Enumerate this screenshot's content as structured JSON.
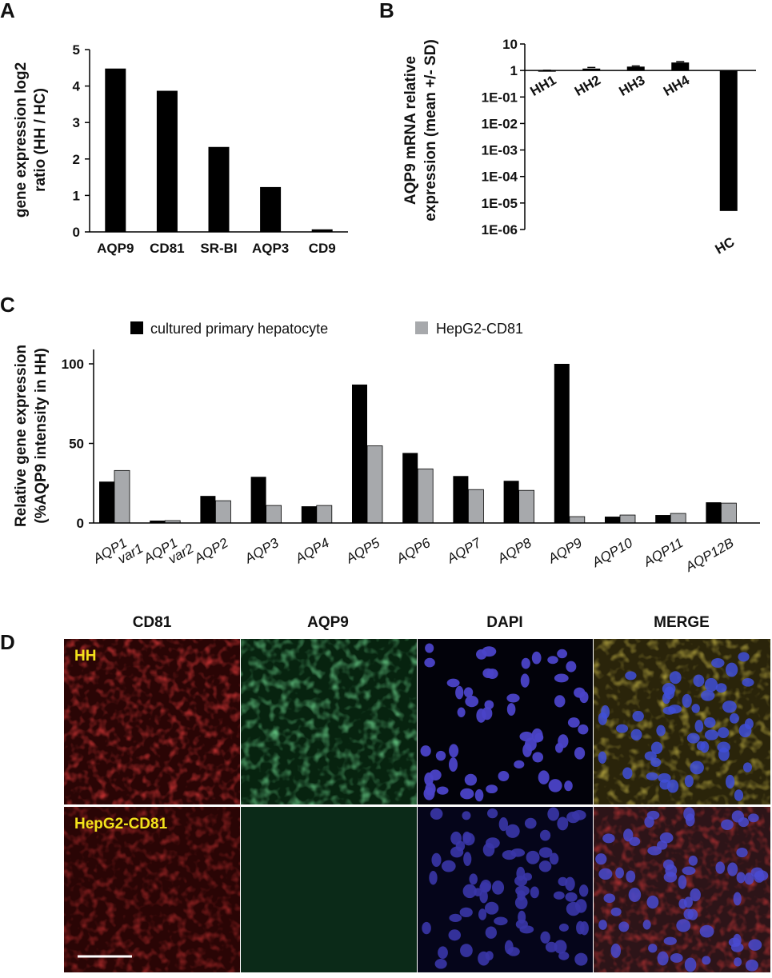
{
  "panel_labels": {
    "a": "A",
    "b": "B",
    "c": "C",
    "d": "D"
  },
  "chart_data": [
    {
      "panel": "A",
      "type": "bar",
      "ylabel_line1": "gene expression log2",
      "ylabel_line2": "ratio (HH / HC)",
      "categories": [
        "AQP9",
        "CD81",
        "SR-BI",
        "AQP3",
        "CD9"
      ],
      "values": [
        4.48,
        3.87,
        2.33,
        1.23,
        0.07
      ],
      "ylim": [
        0,
        5
      ],
      "yticks": [
        "0",
        "1",
        "2",
        "3",
        "4",
        "5"
      ],
      "bar_color": "#000000",
      "grid": false
    },
    {
      "panel": "B",
      "type": "bar",
      "ylabel_line1": "AQP9 mRNA relative",
      "ylabel_line2": "expression (mean +/- SD)",
      "yscale": "log",
      "categories": [
        "HH1",
        "HH2",
        "HH3",
        "HH4",
        "HC"
      ],
      "values": [
        1.0,
        1.18,
        1.4,
        2.0,
        5e-06
      ],
      "errors": [
        0.02,
        0.12,
        0.08,
        0.15,
        0
      ],
      "ylim": [
        1e-06,
        10
      ],
      "yticks": [
        "1E-06",
        "1E-05",
        "1E-04",
        "1E-03",
        "1E-02",
        "1E-01",
        "1",
        "10"
      ],
      "bar_color": "#000000",
      "grid": false
    },
    {
      "panel": "C",
      "type": "bar",
      "ylabel_line1": "Relative gene expression",
      "ylabel_line2": "(%AQP9 intensity in HH)",
      "categories": [
        {
          "main": "AQP1",
          "sub": "var1"
        },
        {
          "main": "AQP1",
          "sub": "var2"
        },
        {
          "main": "AQP2",
          "sub": ""
        },
        {
          "main": "AQP3",
          "sub": ""
        },
        {
          "main": "AQP4",
          "sub": ""
        },
        {
          "main": "AQP5",
          "sub": ""
        },
        {
          "main": "AQP6",
          "sub": ""
        },
        {
          "main": "AQP7",
          "sub": ""
        },
        {
          "main": "AQP8",
          "sub": ""
        },
        {
          "main": "AQP9",
          "sub": ""
        },
        {
          "main": "AQP10",
          "sub": ""
        },
        {
          "main": "AQP11",
          "sub": ""
        },
        {
          "main": "AQP12B",
          "sub": ""
        }
      ],
      "series": [
        {
          "name": "cultured primary hepatocyte",
          "color": "#000000",
          "values": [
            26,
            1.5,
            17,
            29,
            10.5,
            87,
            44,
            29.5,
            26.5,
            100,
            4,
            5,
            13
          ]
        },
        {
          "name": "HepG2-CD81",
          "color": "#a7a9ac",
          "values": [
            33,
            1.5,
            14,
            11,
            11,
            48.5,
            34,
            21,
            20.5,
            4,
            5,
            6,
            12.5
          ]
        }
      ],
      "ylim": [
        0,
        110
      ],
      "yticks": [
        "0",
        "50",
        "100"
      ],
      "legend_position": "top",
      "grid": false
    }
  ],
  "micrographs": {
    "column_headers": [
      "CD81",
      "AQP9",
      "DAPI",
      "MERGE"
    ],
    "row_labels": [
      "HH",
      "HepG2-CD81"
    ],
    "label_color": "#f3e21b"
  }
}
